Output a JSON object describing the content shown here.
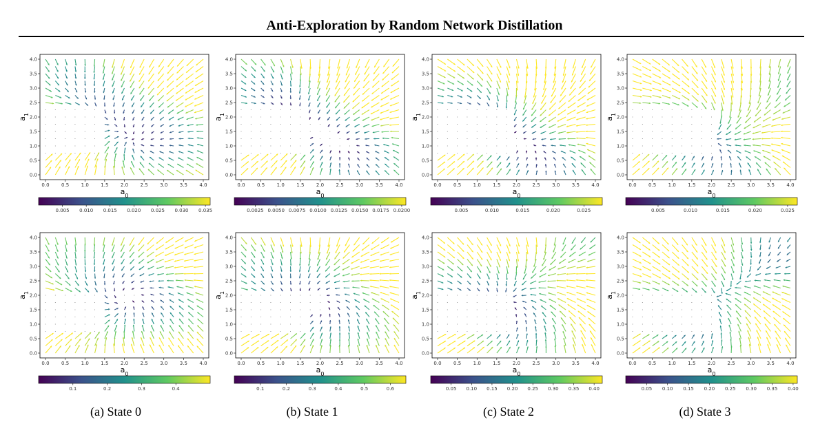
{
  "title": "Anti-Exploration by Random Network Distillation",
  "colormap": [
    "#440154",
    "#3b528b",
    "#21918c",
    "#5ec962",
    "#fde725"
  ],
  "captions": [
    "(a) State 0",
    "(b) State 1",
    "(c) State 2",
    "(d) State 3"
  ],
  "chart_data": [
    {
      "type": "quiver",
      "row": 0,
      "state": 0,
      "xlabel": "a_0",
      "ylabel": "a_1",
      "xlim": [
        0,
        4
      ],
      "ylim": [
        0,
        4
      ],
      "xticks": [
        "0.0",
        "0.5",
        "1.0",
        "1.5",
        "2.0",
        "2.5",
        "3.0",
        "3.5",
        "4.0"
      ],
      "yticks": [
        "0.0",
        "0.5",
        "1.0",
        "1.5",
        "2.0",
        "2.5",
        "3.0",
        "3.5",
        "4.0"
      ],
      "colorbar": {
        "min": 0.0,
        "max": 0.036,
        "ticks": [
          0.005,
          0.01,
          0.015,
          0.02,
          0.025,
          0.03,
          0.035
        ],
        "labels": [
          "0.005",
          "0.010",
          "0.015",
          "0.020",
          "0.025",
          "0.030",
          "0.035"
        ]
      }
    },
    {
      "type": "quiver",
      "row": 0,
      "state": 1,
      "xlabel": "a_0",
      "ylabel": "a_1",
      "xlim": [
        0,
        4
      ],
      "ylim": [
        0,
        4
      ],
      "xticks": [
        "0.0",
        "0.5",
        "1.0",
        "1.5",
        "2.0",
        "2.5",
        "3.0",
        "3.5",
        "4.0"
      ],
      "yticks": [
        "0.0",
        "0.5",
        "1.0",
        "1.5",
        "2.0",
        "2.5",
        "3.0",
        "3.5",
        "4.0"
      ],
      "colorbar": {
        "min": 0.0,
        "max": 0.0205,
        "ticks": [
          0.0025,
          0.005,
          0.0075,
          0.01,
          0.0125,
          0.015,
          0.0175,
          0.02
        ],
        "labels": [
          "0.0025",
          "0.0050",
          "0.0075",
          "0.0100",
          "0.0125",
          "0.0150",
          "0.0175",
          "0.0200"
        ]
      }
    },
    {
      "type": "quiver",
      "row": 0,
      "state": 2,
      "xlabel": "a_0",
      "ylabel": "a_1",
      "xlim": [
        0,
        4
      ],
      "ylim": [
        0,
        4
      ],
      "xticks": [
        "0.0",
        "0.5",
        "1.0",
        "1.5",
        "2.0",
        "2.5",
        "3.0",
        "3.5",
        "4.0"
      ],
      "yticks": [
        "0.0",
        "0.5",
        "1.0",
        "1.5",
        "2.0",
        "2.5",
        "3.0",
        "3.5",
        "4.0"
      ],
      "colorbar": {
        "min": 0.0,
        "max": 0.028,
        "ticks": [
          0.005,
          0.01,
          0.015,
          0.02,
          0.025
        ],
        "labels": [
          "0.005",
          "0.010",
          "0.015",
          "0.020",
          "0.025"
        ]
      }
    },
    {
      "type": "quiver",
      "row": 0,
      "state": 3,
      "xlabel": "a_0",
      "ylabel": "a_1",
      "xlim": [
        0,
        4
      ],
      "ylim": [
        0,
        4
      ],
      "xticks": [
        "0.0",
        "0.5",
        "1.0",
        "1.5",
        "2.0",
        "2.5",
        "3.0",
        "3.5",
        "4.0"
      ],
      "yticks": [
        "0.0",
        "0.5",
        "1.0",
        "1.5",
        "2.0",
        "2.5",
        "3.0",
        "3.5",
        "4.0"
      ],
      "colorbar": {
        "min": 0.0,
        "max": 0.0265,
        "ticks": [
          0.005,
          0.01,
          0.015,
          0.02,
          0.025
        ],
        "labels": [
          "0.005",
          "0.010",
          "0.015",
          "0.020",
          "0.025"
        ]
      }
    },
    {
      "type": "quiver",
      "row": 1,
      "state": 0,
      "xlabel": "a_0",
      "ylabel": "a_1",
      "xlim": [
        0,
        4
      ],
      "ylim": [
        0,
        4
      ],
      "xticks": [
        "0.0",
        "0.5",
        "1.0",
        "1.5",
        "2.0",
        "2.5",
        "3.0",
        "3.5",
        "4.0"
      ],
      "yticks": [
        "0.0",
        "0.5",
        "1.0",
        "1.5",
        "2.0",
        "2.5",
        "3.0",
        "3.5",
        "4.0"
      ],
      "colorbar": {
        "min": 0.0,
        "max": 0.5,
        "ticks": [
          0.1,
          0.2,
          0.3,
          0.4
        ],
        "labels": [
          "0.1",
          "0.2",
          "0.3",
          "0.4"
        ]
      }
    },
    {
      "type": "quiver",
      "row": 1,
      "state": 1,
      "xlabel": "a_0",
      "ylabel": "a_1",
      "xlim": [
        0,
        4
      ],
      "ylim": [
        0,
        4
      ],
      "xticks": [
        "0.0",
        "0.5",
        "1.0",
        "1.5",
        "2.0",
        "2.5",
        "3.0",
        "3.5",
        "4.0"
      ],
      "yticks": [
        "0.0",
        "0.5",
        "1.0",
        "1.5",
        "2.0",
        "2.5",
        "3.0",
        "3.5",
        "4.0"
      ],
      "colorbar": {
        "min": 0.0,
        "max": 0.66,
        "ticks": [
          0.1,
          0.2,
          0.3,
          0.4,
          0.5,
          0.6
        ],
        "labels": [
          "0.1",
          "0.2",
          "0.3",
          "0.4",
          "0.5",
          "0.6"
        ]
      }
    },
    {
      "type": "quiver",
      "row": 1,
      "state": 2,
      "xlabel": "a_0",
      "ylabel": "a_1",
      "xlim": [
        0,
        4
      ],
      "ylim": [
        0,
        4
      ],
      "xticks": [
        "0.0",
        "0.5",
        "1.0",
        "1.5",
        "2.0",
        "2.5",
        "3.0",
        "3.5",
        "4.0"
      ],
      "yticks": [
        "0.0",
        "0.5",
        "1.0",
        "1.5",
        "2.0",
        "2.5",
        "3.0",
        "3.5",
        "4.0"
      ],
      "colorbar": {
        "min": 0.0,
        "max": 0.42,
        "ticks": [
          0.05,
          0.1,
          0.15,
          0.2,
          0.25,
          0.3,
          0.35,
          0.4
        ],
        "labels": [
          "0.05",
          "0.10",
          "0.15",
          "0.20",
          "0.25",
          "0.30",
          "0.35",
          "0.40"
        ]
      }
    },
    {
      "type": "quiver",
      "row": 1,
      "state": 3,
      "xlabel": "a_0",
      "ylabel": "a_1",
      "xlim": [
        0,
        4
      ],
      "ylim": [
        0,
        4
      ],
      "xticks": [
        "0.0",
        "0.5",
        "1.0",
        "1.5",
        "2.0",
        "2.5",
        "3.0",
        "3.5",
        "4.0"
      ],
      "yticks": [
        "0.0",
        "0.5",
        "1.0",
        "1.5",
        "2.0",
        "2.5",
        "3.0",
        "3.5",
        "4.0"
      ],
      "colorbar": {
        "min": 0.0,
        "max": 0.41,
        "ticks": [
          0.05,
          0.1,
          0.15,
          0.2,
          0.25,
          0.3,
          0.35,
          0.4
        ],
        "labels": [
          "0.05",
          "0.10",
          "0.15",
          "0.20",
          "0.25",
          "0.30",
          "0.35",
          "0.40"
        ]
      }
    }
  ]
}
